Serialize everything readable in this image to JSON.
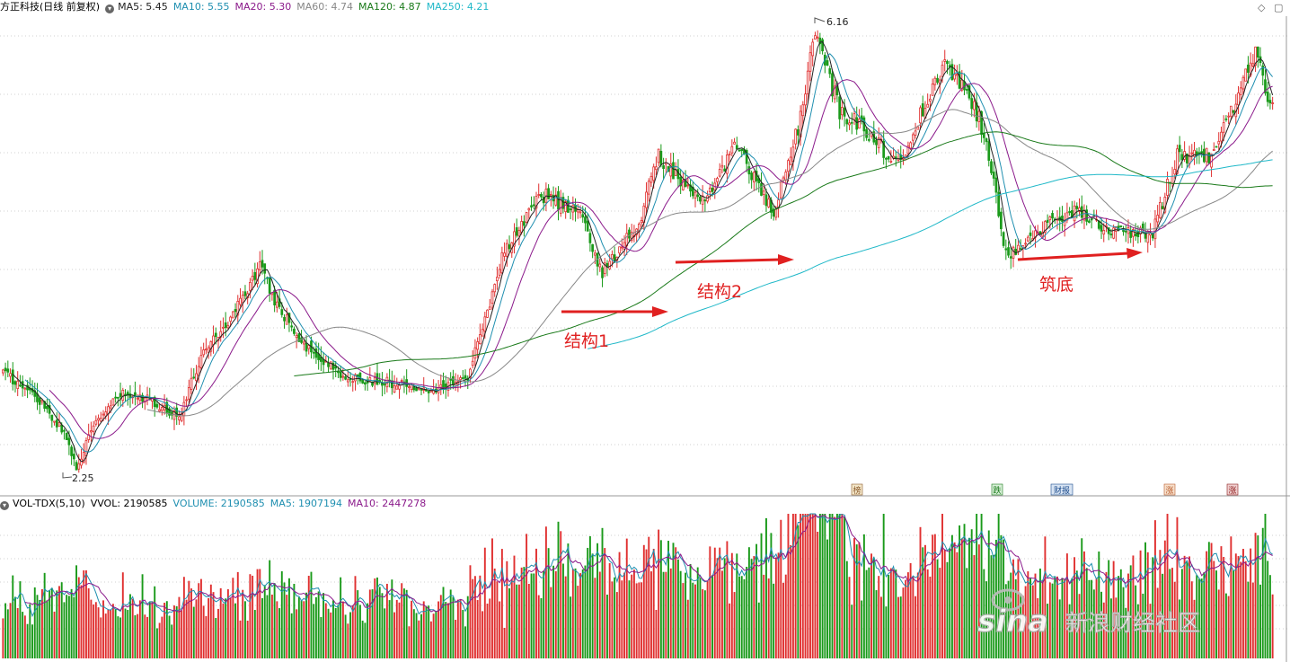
{
  "header": {
    "title": "方正科技(日线 前复权)",
    "ma": [
      {
        "label": "MA5: 5.45",
        "color": "#222222"
      },
      {
        "label": "MA10: 5.55",
        "color": "#1f8fb0"
      },
      {
        "label": "MA20: 5.30",
        "color": "#8b1a8b"
      },
      {
        "label": "MA60: 4.74",
        "color": "#888888"
      },
      {
        "label": "MA120: 4.87",
        "color": "#1a7a1a"
      },
      {
        "label": "MA250: 4.21",
        "color": "#1fb8c8"
      }
    ]
  },
  "volume_header": {
    "title": "VOL-TDX(5,10)",
    "vvol": "VVOL: 2190585",
    "volume": "VOLUME: 2190585",
    "ma5": "MA5: 1907194",
    "ma10": "MA10: 2447278"
  },
  "annotations": {
    "high": "6.16",
    "low": "2.25",
    "structure1": "结构1",
    "structure2": "结构2",
    "base": "筑底"
  },
  "event_tags": [
    {
      "label": "榜",
      "color": "#8b5a2b"
    },
    {
      "label": "跌",
      "color": "#1a7a1a"
    },
    {
      "label": "财报",
      "color": "#1a4a8b"
    },
    {
      "label": "涨",
      "color": "#b85a2b"
    },
    {
      "label": "涨",
      "color": "#8b1a1a"
    }
  ],
  "watermark": {
    "brand": "sina",
    "text": "新浪财经社区"
  },
  "colors": {
    "up": "#e03030",
    "down": "#1a9a1a",
    "arrow": "#e02020",
    "grid": "#d0d0d0"
  },
  "chart_data": {
    "type": "candlestick",
    "title": "方正科技(日线 前复权)",
    "price_high": 6.16,
    "price_low": 2.25,
    "ylim": [
      2.1,
      6.3
    ],
    "anchors": [
      [
        0,
        3.1
      ],
      [
        15,
        2.85
      ],
      [
        25,
        2.55
      ],
      [
        30,
        2.25
      ],
      [
        38,
        2.65
      ],
      [
        48,
        2.9
      ],
      [
        60,
        2.85
      ],
      [
        72,
        2.7
      ],
      [
        82,
        3.3
      ],
      [
        92,
        3.55
      ],
      [
        105,
        4.05
      ],
      [
        112,
        3.7
      ],
      [
        125,
        3.3
      ],
      [
        140,
        3.05
      ],
      [
        160,
        3.0
      ],
      [
        175,
        2.95
      ],
      [
        190,
        3.05
      ],
      [
        205,
        4.2
      ],
      [
        220,
        4.7
      ],
      [
        235,
        4.55
      ],
      [
        245,
        4.0
      ],
      [
        260,
        4.45
      ],
      [
        268,
        5.05
      ],
      [
        285,
        4.6
      ],
      [
        300,
        5.15
      ],
      [
        315,
        4.5
      ],
      [
        325,
        5.3
      ],
      [
        332,
        6.16
      ],
      [
        342,
        5.45
      ],
      [
        355,
        5.25
      ],
      [
        365,
        4.95
      ],
      [
        385,
        5.85
      ],
      [
        395,
        5.6
      ],
      [
        402,
        5.2
      ],
      [
        410,
        4.15
      ],
      [
        425,
        4.4
      ],
      [
        440,
        4.55
      ],
      [
        455,
        4.35
      ],
      [
        470,
        4.35
      ],
      [
        480,
        5.05
      ],
      [
        495,
        5.05
      ],
      [
        505,
        5.6
      ],
      [
        512,
        5.95
      ],
      [
        519,
        5.45
      ]
    ],
    "bars": 520,
    "ma_lines": [
      "MA5",
      "MA10",
      "MA20",
      "MA60",
      "MA120",
      "MA250"
    ],
    "volume": {
      "series": "VOLUME",
      "ma": [
        "MA5",
        "MA10"
      ]
    }
  }
}
